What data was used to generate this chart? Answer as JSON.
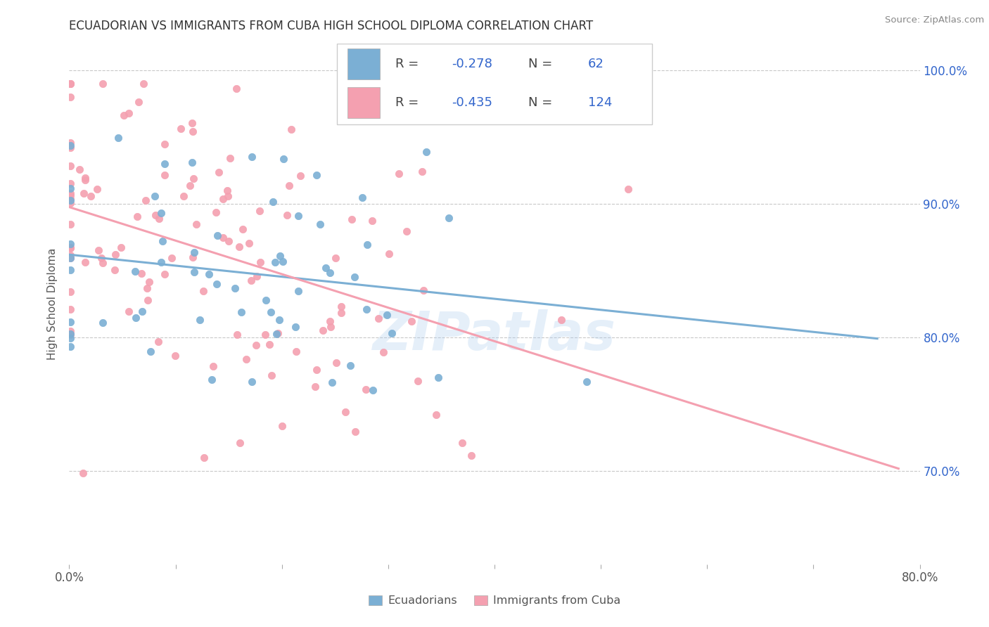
{
  "title": "ECUADORIAN VS IMMIGRANTS FROM CUBA HIGH SCHOOL DIPLOMA CORRELATION CHART",
  "source": "Source: ZipAtlas.com",
  "ylabel": "High School Diploma",
  "xlim": [
    0.0,
    0.8
  ],
  "ylim": [
    0.63,
    1.02
  ],
  "y_ticks": [
    0.7,
    0.8,
    0.9,
    1.0
  ],
  "y_tick_labels": [
    "70.0%",
    "80.0%",
    "90.0%",
    "100.0%"
  ],
  "blue_color": "#7BAFD4",
  "pink_color": "#F4A0B0",
  "blue_R": -0.278,
  "blue_N": 62,
  "pink_R": -0.435,
  "pink_N": 124,
  "watermark": "ZIPatlas",
  "background_color": "#FFFFFF",
  "grid_color": "#C8C8C8",
  "legend_text_color": "#3366CC",
  "title_color": "#333333",
  "axis_label_color": "#555555"
}
